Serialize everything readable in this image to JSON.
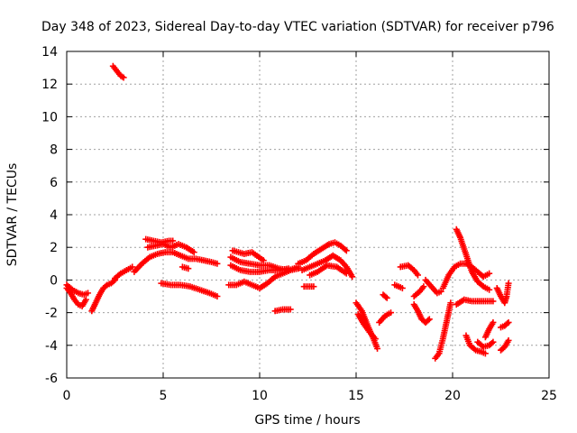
{
  "chart_data": {
    "type": "scatter",
    "title": "Day 348 of 2023, Sidereal Day-to-day VTEC variation (SDTVAR) for receiver p796",
    "xlabel": "GPS time / hours",
    "ylabel": "SDTVAR / TECUs",
    "xlim": [
      0,
      25
    ],
    "ylim": [
      -6,
      14
    ],
    "xticks": [
      0,
      5,
      10,
      15,
      20,
      25
    ],
    "yticks": [
      -6,
      -4,
      -2,
      0,
      2,
      4,
      6,
      8,
      10,
      12,
      14
    ],
    "grid": true,
    "marker": "+",
    "color": "#ff0000",
    "segments": [
      [
        [
          2.4,
          13.1
        ],
        [
          2.6,
          12.8
        ],
        [
          2.8,
          12.5
        ],
        [
          2.95,
          12.4
        ]
      ],
      [
        [
          0.0,
          -0.5
        ],
        [
          0.2,
          -0.8
        ],
        [
          0.4,
          -1.2
        ],
        [
          0.6,
          -1.5
        ],
        [
          0.8,
          -1.6
        ],
        [
          1.0,
          -1.2
        ]
      ],
      [
        [
          0.0,
          -0.3
        ],
        [
          0.3,
          -0.6
        ],
        [
          0.6,
          -0.8
        ],
        [
          0.9,
          -0.9
        ],
        [
          1.1,
          -0.8
        ]
      ],
      [
        [
          1.3,
          -1.9
        ],
        [
          1.5,
          -1.4
        ],
        [
          1.7,
          -0.9
        ],
        [
          1.9,
          -0.5
        ],
        [
          2.1,
          -0.3
        ],
        [
          2.3,
          -0.2
        ],
        [
          2.5,
          0.0
        ]
      ],
      [
        [
          2.5,
          0.1
        ],
        [
          2.8,
          0.4
        ],
        [
          3.1,
          0.6
        ],
        [
          3.4,
          0.8
        ]
      ],
      [
        [
          3.5,
          0.5
        ],
        [
          3.9,
          1.0
        ],
        [
          4.3,
          1.4
        ],
        [
          4.7,
          1.6
        ],
        [
          5.1,
          1.7
        ],
        [
          5.5,
          1.7
        ],
        [
          5.9,
          1.5
        ],
        [
          6.3,
          1.3
        ],
        [
          6.7,
          1.3
        ],
        [
          7.1,
          1.2
        ],
        [
          7.5,
          1.1
        ],
        [
          7.8,
          1.0
        ]
      ],
      [
        [
          4.1,
          2.5
        ],
        [
          4.5,
          2.4
        ],
        [
          4.9,
          2.3
        ],
        [
          5.3,
          2.4
        ],
        [
          5.5,
          2.4
        ]
      ],
      [
        [
          4.2,
          2.0
        ],
        [
          4.6,
          2.1
        ],
        [
          5.0,
          2.2
        ],
        [
          5.4,
          2.0
        ],
        [
          5.8,
          2.2
        ],
        [
          6.2,
          2.0
        ],
        [
          6.6,
          1.7
        ]
      ],
      [
        [
          4.9,
          -0.2
        ],
        [
          5.4,
          -0.3
        ],
        [
          5.9,
          -0.3
        ],
        [
          6.4,
          -0.4
        ],
        [
          6.9,
          -0.6
        ],
        [
          7.4,
          -0.8
        ],
        [
          7.8,
          -1.0
        ]
      ],
      [
        [
          6.0,
          0.8
        ],
        [
          6.3,
          0.7
        ]
      ],
      [
        [
          8.5,
          1.4
        ],
        [
          9.0,
          1.1
        ],
        [
          9.5,
          1.0
        ],
        [
          10.0,
          0.9
        ],
        [
          10.5,
          0.9
        ],
        [
          11.0,
          0.7
        ],
        [
          11.5,
          0.6
        ],
        [
          12.0,
          0.8
        ]
      ],
      [
        [
          8.5,
          0.9
        ],
        [
          9.0,
          0.6
        ],
        [
          9.5,
          0.5
        ],
        [
          10.0,
          0.5
        ],
        [
          10.5,
          0.6
        ],
        [
          11.0,
          0.6
        ],
        [
          11.5,
          0.7
        ]
      ],
      [
        [
          8.4,
          -0.3
        ],
        [
          8.8,
          -0.3
        ],
        [
          9.2,
          -0.1
        ],
        [
          9.6,
          -0.3
        ],
        [
          10.0,
          -0.5
        ],
        [
          10.4,
          -0.2
        ],
        [
          10.8,
          0.2
        ],
        [
          11.2,
          0.4
        ],
        [
          11.6,
          0.6
        ],
        [
          12.0,
          0.7
        ]
      ],
      [
        [
          8.6,
          1.8
        ],
        [
          9.2,
          1.6
        ],
        [
          9.6,
          1.7
        ],
        [
          10.2,
          1.2
        ]
      ],
      [
        [
          10.8,
          -1.9
        ],
        [
          11.2,
          -1.8
        ],
        [
          11.6,
          -1.8
        ]
      ],
      [
        [
          12.0,
          1.0
        ],
        [
          12.4,
          1.2
        ],
        [
          12.8,
          1.6
        ],
        [
          13.2,
          1.9
        ],
        [
          13.6,
          2.2
        ],
        [
          13.9,
          2.3
        ],
        [
          14.2,
          2.1
        ],
        [
          14.5,
          1.8
        ]
      ],
      [
        [
          12.2,
          0.6
        ],
        [
          12.6,
          0.8
        ],
        [
          13.0,
          1.0
        ],
        [
          13.4,
          1.2
        ],
        [
          13.8,
          1.5
        ],
        [
          14.2,
          1.2
        ],
        [
          14.5,
          0.8
        ],
        [
          14.8,
          0.2
        ]
      ],
      [
        [
          12.3,
          -0.4
        ],
        [
          12.8,
          -0.4
        ]
      ],
      [
        [
          12.6,
          0.3
        ],
        [
          13.0,
          0.5
        ],
        [
          13.5,
          0.9
        ],
        [
          14.0,
          0.8
        ],
        [
          14.5,
          0.4
        ]
      ],
      [
        [
          15.0,
          -1.4
        ],
        [
          15.3,
          -1.9
        ],
        [
          15.6,
          -2.8
        ],
        [
          15.9,
          -3.6
        ],
        [
          16.1,
          -4.2
        ]
      ],
      [
        [
          15.1,
          -2.1
        ],
        [
          15.4,
          -2.7
        ],
        [
          15.7,
          -3.2
        ],
        [
          16.0,
          -3.6
        ]
      ],
      [
        [
          16.2,
          -2.6
        ],
        [
          16.5,
          -2.2
        ],
        [
          16.8,
          -2.0
        ]
      ],
      [
        [
          16.4,
          -0.9
        ],
        [
          16.6,
          -1.1
        ]
      ],
      [
        [
          17.0,
          -0.3
        ],
        [
          17.4,
          -0.5
        ]
      ],
      [
        [
          17.3,
          0.8
        ],
        [
          17.7,
          0.9
        ],
        [
          18.0,
          0.6
        ],
        [
          18.2,
          0.3
        ]
      ],
      [
        [
          18.0,
          -1.5
        ],
        [
          18.2,
          -1.9
        ],
        [
          18.4,
          -2.4
        ],
        [
          18.6,
          -2.6
        ],
        [
          18.8,
          -2.4
        ]
      ],
      [
        [
          18.6,
          0.0
        ],
        [
          18.9,
          -0.4
        ],
        [
          19.2,
          -0.8
        ],
        [
          19.4,
          -0.7
        ]
      ],
      [
        [
          18.0,
          -1.0
        ],
        [
          18.3,
          -0.7
        ],
        [
          18.5,
          -0.4
        ]
      ],
      [
        [
          19.1,
          -4.8
        ],
        [
          19.3,
          -4.5
        ],
        [
          19.5,
          -3.6
        ],
        [
          19.7,
          -2.5
        ],
        [
          19.9,
          -1.4
        ]
      ],
      [
        [
          19.5,
          -0.5
        ],
        [
          19.8,
          0.3
        ],
        [
          20.1,
          0.8
        ],
        [
          20.4,
          1.0
        ],
        [
          20.7,
          1.0
        ],
        [
          21.0,
          0.8
        ],
        [
          21.3,
          0.5
        ],
        [
          21.6,
          0.2
        ],
        [
          21.9,
          0.4
        ]
      ],
      [
        [
          20.2,
          3.1
        ],
        [
          20.4,
          2.6
        ],
        [
          20.6,
          1.9
        ],
        [
          20.8,
          1.2
        ],
        [
          21.0,
          0.5
        ],
        [
          21.3,
          -0.1
        ],
        [
          21.6,
          -0.4
        ],
        [
          21.9,
          -0.6
        ]
      ],
      [
        [
          20.2,
          -1.5
        ],
        [
          20.6,
          -1.2
        ],
        [
          21.0,
          -1.3
        ],
        [
          21.4,
          -1.3
        ],
        [
          21.8,
          -1.3
        ],
        [
          22.1,
          -1.3
        ]
      ],
      [
        [
          20.7,
          -3.4
        ],
        [
          20.9,
          -4.0
        ],
        [
          21.2,
          -4.3
        ],
        [
          21.5,
          -4.4
        ],
        [
          21.7,
          -4.5
        ]
      ],
      [
        [
          21.7,
          -3.5
        ],
        [
          21.9,
          -3.0
        ],
        [
          22.1,
          -2.6
        ]
      ],
      [
        [
          21.3,
          -3.8
        ],
        [
          21.6,
          -4.1
        ],
        [
          21.9,
          -4.0
        ],
        [
          22.1,
          -3.8
        ]
      ],
      [
        [
          22.3,
          -0.5
        ],
        [
          22.5,
          -1.0
        ],
        [
          22.7,
          -1.4
        ],
        [
          22.8,
          -1.0
        ],
        [
          22.9,
          -0.2
        ]
      ],
      [
        [
          22.5,
          -2.9
        ],
        [
          22.7,
          -2.8
        ],
        [
          22.9,
          -2.6
        ]
      ],
      [
        [
          22.5,
          -4.3
        ],
        [
          22.7,
          -4.1
        ],
        [
          22.9,
          -3.7
        ]
      ]
    ]
  }
}
